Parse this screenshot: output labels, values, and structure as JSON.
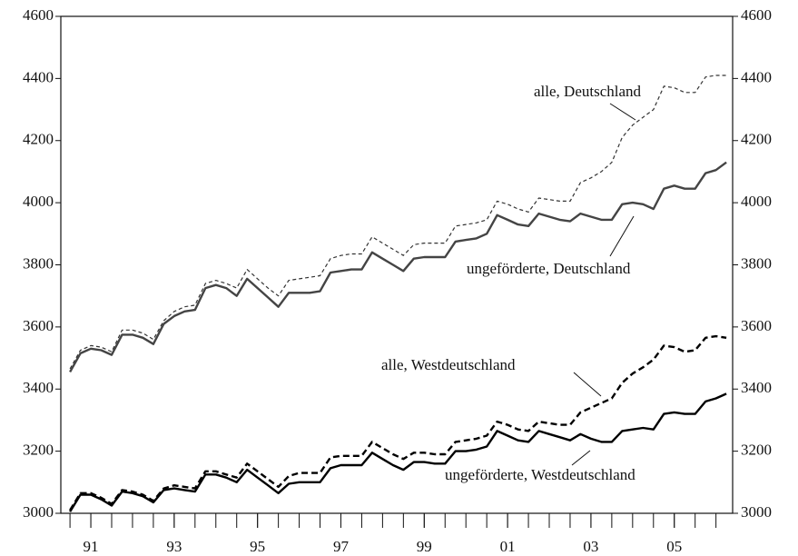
{
  "chart_data": {
    "type": "line",
    "x": [
      1991,
      1991.25,
      1991.5,
      1991.75,
      1992,
      1992.25,
      1992.5,
      1992.75,
      1993,
      1993.25,
      1993.5,
      1993.75,
      1994,
      1994.25,
      1994.5,
      1994.75,
      1995,
      1995.25,
      1995.5,
      1995.75,
      1996,
      1996.25,
      1996.5,
      1996.75,
      1997,
      1997.25,
      1997.5,
      1997.75,
      1998,
      1998.25,
      1998.5,
      1998.75,
      1999,
      1999.25,
      1999.5,
      1999.75,
      2000,
      2000.25,
      2000.5,
      2000.75,
      2001,
      2001.25,
      2001.5,
      2001.75,
      2002,
      2002.25,
      2002.5,
      2002.75,
      2003,
      2003.25,
      2003.5,
      2003.75,
      2004,
      2004.25,
      2004.5,
      2004.75,
      2005,
      2005.25,
      2005.5,
      2005.75,
      2006,
      2006.25,
      2006.5,
      2006.75
    ],
    "series": [
      {
        "name": "alle, Deutschland",
        "color": "#333333",
        "dashed": true,
        "width": 1.2,
        "values": [
          3465,
          3525,
          3540,
          3535,
          3520,
          3590,
          3590,
          3580,
          3560,
          3620,
          3650,
          3665,
          3670,
          3740,
          3750,
          3740,
          3725,
          3785,
          3755,
          3725,
          3700,
          3750,
          3755,
          3760,
          3765,
          3820,
          3830,
          3835,
          3835,
          3890,
          3870,
          3850,
          3830,
          3865,
          3870,
          3870,
          3870,
          3925,
          3930,
          3935,
          3945,
          4005,
          3995,
          3980,
          3970,
          4015,
          4010,
          4005,
          4005,
          4065,
          4080,
          4100,
          4130,
          4210,
          4250,
          4275,
          4300,
          4375,
          4370,
          4355,
          4355,
          4405,
          4410,
          4410
        ]
      },
      {
        "name": "ungeförderte, Deutschland",
        "color": "#444444",
        "dashed": false,
        "width": 2.4,
        "values": [
          3455,
          3515,
          3530,
          3525,
          3510,
          3575,
          3575,
          3565,
          3545,
          3610,
          3635,
          3650,
          3655,
          3725,
          3735,
          3725,
          3700,
          3755,
          3725,
          3695,
          3665,
          3710,
          3710,
          3710,
          3715,
          3775,
          3780,
          3785,
          3785,
          3840,
          3820,
          3800,
          3780,
          3820,
          3825,
          3825,
          3825,
          3875,
          3880,
          3885,
          3900,
          3960,
          3945,
          3930,
          3925,
          3965,
          3955,
          3945,
          3940,
          3965,
          3955,
          3945,
          3945,
          3995,
          4000,
          3995,
          3980,
          4045,
          4055,
          4045,
          4045,
          4095,
          4105,
          4130
        ]
      },
      {
        "name": "alle, Westdeutschland",
        "color": "#000000",
        "dashed": true,
        "width": 2.4,
        "values": [
          3010,
          3065,
          3065,
          3050,
          3030,
          3075,
          3070,
          3060,
          3040,
          3080,
          3090,
          3085,
          3080,
          3135,
          3135,
          3125,
          3115,
          3160,
          3135,
          3110,
          3085,
          3120,
          3130,
          3130,
          3130,
          3180,
          3185,
          3185,
          3185,
          3230,
          3210,
          3190,
          3175,
          3195,
          3195,
          3190,
          3190,
          3230,
          3235,
          3240,
          3250,
          3295,
          3285,
          3270,
          3265,
          3295,
          3290,
          3285,
          3285,
          3325,
          3340,
          3355,
          3370,
          3420,
          3450,
          3470,
          3495,
          3540,
          3535,
          3520,
          3525,
          3565,
          3570,
          3565
        ]
      },
      {
        "name": "ungeförderte, Westdeutschland",
        "color": "#000000",
        "dashed": false,
        "width": 2.4,
        "values": [
          3005,
          3060,
          3060,
          3045,
          3025,
          3070,
          3065,
          3055,
          3035,
          3075,
          3080,
          3075,
          3070,
          3125,
          3125,
          3115,
          3100,
          3140,
          3115,
          3090,
          3065,
          3095,
          3100,
          3100,
          3100,
          3145,
          3155,
          3155,
          3155,
          3195,
          3175,
          3155,
          3140,
          3165,
          3165,
          3160,
          3160,
          3200,
          3200,
          3205,
          3215,
          3265,
          3250,
          3235,
          3230,
          3265,
          3255,
          3245,
          3235,
          3255,
          3240,
          3230,
          3230,
          3265,
          3270,
          3275,
          3270,
          3320,
          3325,
          3320,
          3320,
          3360,
          3370,
          3385
        ]
      }
    ],
    "xlim": [
      1990.78,
      2006.9
    ],
    "xticks": [
      {
        "value": 1991.5,
        "label": "91"
      },
      {
        "value": 1993.5,
        "label": "93"
      },
      {
        "value": 1995.5,
        "label": "95"
      },
      {
        "value": 1997.5,
        "label": "97"
      },
      {
        "value": 1999.5,
        "label": "99"
      },
      {
        "value": 2001.5,
        "label": "01"
      },
      {
        "value": 2003.5,
        "label": "03"
      },
      {
        "value": 2005.5,
        "label": "05"
      }
    ],
    "xminorticks": [
      1991,
      1991.5,
      1992,
      1992.5,
      1993,
      1993.5,
      1994,
      1994.5,
      1995,
      1995.5,
      1996,
      1996.5,
      1997,
      1997.5,
      1998,
      1998.5,
      1999,
      1999.5,
      2000,
      2000.5,
      2001,
      2001.5,
      2002,
      2002.5,
      2003,
      2003.5,
      2004,
      2004.5,
      2005,
      2005.5,
      2006,
      2006.5
    ],
    "ylim": [
      3000,
      4600
    ],
    "yticks": [
      3000,
      3200,
      3400,
      3600,
      3800,
      4000,
      4200,
      4400,
      4600
    ],
    "y2lim": [
      3000,
      4600
    ],
    "y2ticks": [
      3000,
      3200,
      3400,
      3600,
      3800,
      4000,
      4200,
      4400,
      4600
    ],
    "grid": false
  }
}
